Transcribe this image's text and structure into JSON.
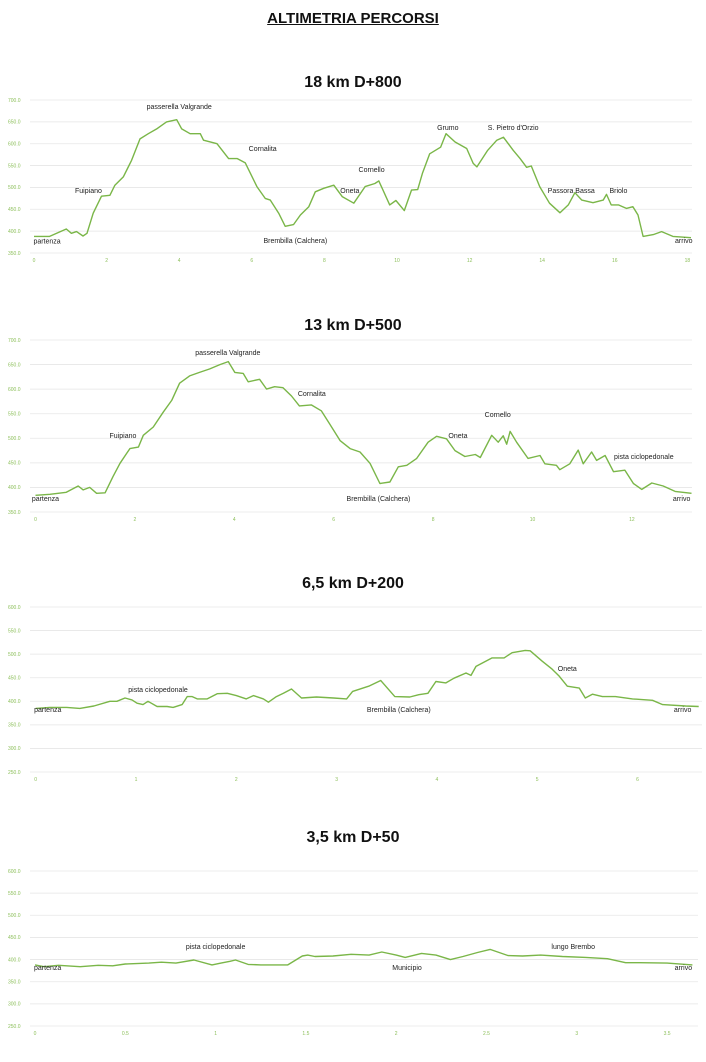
{
  "page_title": "ALTIMETRIA PERCORSI",
  "line_color": "#7ab648",
  "chart_data": [
    {
      "type": "line",
      "title": "18 km D+800",
      "xlim": [
        0,
        18.1
      ],
      "ylim": [
        350,
        700
      ],
      "xticks": [
        0,
        2,
        4,
        6,
        8,
        10,
        12,
        14,
        16,
        18
      ],
      "yticks": [
        "350.0",
        "400.0",
        "450.0",
        "500.0",
        "550.0",
        "600.0",
        "650.0",
        "700.0"
      ],
      "grid": true,
      "x": [
        0,
        0.43,
        0.89,
        1.03,
        1.17,
        1.35,
        1.46,
        1.63,
        1.86,
        2.09,
        2.23,
        2.46,
        2.69,
        2.92,
        3.15,
        3.38,
        3.65,
        3.93,
        4.07,
        4.3,
        4.58,
        4.67,
        5.04,
        5.36,
        5.6,
        5.82,
        6.14,
        6.37,
        6.51,
        6.74,
        6.92,
        7.15,
        7.34,
        7.57,
        7.75,
        7.98,
        8.26,
        8.49,
        8.81,
        9.12,
        9.39,
        9.5,
        9.8,
        9.97,
        10.2,
        10.4,
        10.57,
        10.7,
        10.9,
        11.2,
        11.35,
        11.6,
        11.92,
        12.1,
        12.2,
        12.5,
        12.75,
        12.93,
        13.2,
        13.39,
        13.57,
        13.7,
        13.93,
        14.2,
        14.49,
        14.72,
        14.9,
        15.09,
        15.4,
        15.68,
        15.77,
        15.9,
        16.1,
        16.32,
        16.5,
        16.64,
        16.78,
        17.06,
        17.29,
        17.6,
        18.1
      ],
      "y": [
        388,
        388,
        405,
        395,
        399,
        389,
        395,
        441,
        480,
        482,
        505,
        524,
        562,
        611,
        623,
        634,
        650,
        655,
        634,
        623,
        623,
        608,
        600,
        566,
        566,
        556,
        502,
        475,
        471,
        441,
        411,
        415,
        437,
        456,
        490,
        498,
        505,
        479,
        464,
        502,
        509,
        515,
        460,
        470,
        447,
        494,
        495,
        532,
        577,
        592,
        623,
        604,
        589,
        555,
        547,
        585,
        608,
        615,
        585,
        566,
        546,
        549,
        502,
        464,
        442,
        460,
        488,
        471,
        465,
        471,
        484,
        460,
        460,
        452,
        456,
        437,
        388,
        392,
        399,
        388,
        385
      ],
      "annotations": [
        {
          "text": "partenza",
          "x": 0.36,
          "y": 372
        },
        {
          "text": "Fuipiano",
          "x": 1.5,
          "y": 487
        },
        {
          "text": "passerella Valgrande",
          "x": 4.0,
          "y": 679
        },
        {
          "text": "Cornalita",
          "x": 6.3,
          "y": 583
        },
        {
          "text": "Brembilla (Calchera)",
          "x": 7.2,
          "y": 373
        },
        {
          "text": "Oneta",
          "x": 8.7,
          "y": 487
        },
        {
          "text": "Cornello",
          "x": 9.3,
          "y": 535
        },
        {
          "text": "Grumo",
          "x": 11.4,
          "y": 631
        },
        {
          "text": "S. Pietro d'Orzio",
          "x": 13.2,
          "y": 631
        },
        {
          "text": "Passora Bassa",
          "x": 14.8,
          "y": 487
        },
        {
          "text": "Briolo",
          "x": 16.1,
          "y": 487
        },
        {
          "text": "arrivo",
          "x": 17.9,
          "y": 373
        }
      ]
    },
    {
      "type": "line",
      "title": "13 km D+500",
      "xlim": [
        0,
        13.2
      ],
      "ylim": [
        350,
        700
      ],
      "xticks": [
        0,
        2,
        4,
        6,
        8,
        10,
        12
      ],
      "yticks": [
        "350.0",
        "400.0",
        "450.0",
        "500.0",
        "550.0",
        "600.0",
        "650.0",
        "700.0"
      ],
      "grid": true,
      "x": [
        0,
        0.29,
        0.62,
        0.86,
        0.96,
        1.09,
        1.23,
        1.4,
        1.56,
        1.7,
        1.9,
        2.07,
        2.17,
        2.37,
        2.57,
        2.74,
        2.9,
        3.1,
        3.3,
        3.5,
        3.71,
        3.88,
        4.01,
        4.18,
        4.28,
        4.51,
        4.65,
        4.81,
        4.98,
        5.15,
        5.31,
        5.55,
        5.75,
        5.92,
        6.13,
        6.33,
        6.53,
        6.73,
        6.93,
        7.13,
        7.3,
        7.47,
        7.67,
        7.9,
        8.07,
        8.27,
        8.44,
        8.64,
        8.85,
        8.95,
        9.18,
        9.31,
        9.41,
        9.48,
        9.55,
        9.68,
        9.91,
        10.15,
        10.25,
        10.48,
        10.55,
        10.75,
        10.92,
        11.02,
        11.19,
        11.29,
        11.46,
        11.63,
        11.86,
        12.03,
        12.2,
        12.4,
        12.63,
        12.87,
        13.2
      ],
      "y": [
        384,
        386,
        390,
        403,
        395,
        400,
        388,
        389,
        422,
        449,
        479,
        482,
        506,
        523,
        553,
        577,
        612,
        627,
        634,
        641,
        650,
        656,
        634,
        632,
        615,
        620,
        600,
        605,
        603,
        586,
        566,
        568,
        556,
        529,
        495,
        479,
        472,
        449,
        408,
        411,
        442,
        445,
        459,
        492,
        504,
        499,
        475,
        463,
        467,
        461,
        506,
        492,
        505,
        488,
        514,
        492,
        459,
        465,
        448,
        445,
        436,
        448,
        476,
        448,
        472,
        455,
        465,
        432,
        435,
        408,
        396,
        409,
        403,
        392,
        388
      ],
      "annotations": [
        {
          "text": "partenza",
          "x": 0.2,
          "y": 372
        },
        {
          "text": "Fuipiano",
          "x": 1.76,
          "y": 501
        },
        {
          "text": "passerella Valgrande",
          "x": 3.87,
          "y": 669
        },
        {
          "text": "Cornalita",
          "x": 5.56,
          "y": 586
        },
        {
          "text": "Brembilla (Calchera)",
          "x": 6.9,
          "y": 372
        },
        {
          "text": "Oneta",
          "x": 8.5,
          "y": 501
        },
        {
          "text": "Cornello",
          "x": 9.3,
          "y": 543
        },
        {
          "text": "pista ciclopedonale",
          "x": 12.24,
          "y": 458
        },
        {
          "text": "arrivo",
          "x": 13.0,
          "y": 372
        }
      ]
    },
    {
      "type": "line",
      "title": "6,5 km D+200",
      "xlim": [
        0,
        6.61
      ],
      "ylim": [
        250,
        600
      ],
      "xticks": [
        0,
        1,
        2,
        3,
        4,
        5,
        6
      ],
      "yticks": [
        "250.0",
        "300.0",
        "350.0",
        "400.0",
        "450.0",
        "500.0",
        "550.0",
        "600.0"
      ],
      "grid": true,
      "x": [
        0,
        0.14,
        0.31,
        0.44,
        0.58,
        0.74,
        0.81,
        0.89,
        0.96,
        1.01,
        1.07,
        1.12,
        1.21,
        1.31,
        1.37,
        1.46,
        1.51,
        1.56,
        1.61,
        1.71,
        1.81,
        1.91,
        2.0,
        2.1,
        2.17,
        2.27,
        2.32,
        2.4,
        2.47,
        2.55,
        2.65,
        2.8,
        2.97,
        3.1,
        3.16,
        3.32,
        3.44,
        3.58,
        3.73,
        3.82,
        3.91,
        3.99,
        4.09,
        4.17,
        4.29,
        4.34,
        4.39,
        4.55,
        4.67,
        4.75,
        4.88,
        4.93,
        5.05,
        5.15,
        5.22,
        5.3,
        5.42,
        5.48,
        5.55,
        5.65,
        5.78,
        5.95,
        6.15,
        6.25,
        6.48,
        6.61
      ],
      "y": [
        385,
        387,
        387,
        385,
        390,
        400,
        400,
        407,
        403,
        396,
        393,
        400,
        389,
        389,
        387,
        393,
        410,
        410,
        405,
        405,
        416,
        417,
        412,
        405,
        412,
        405,
        398,
        410,
        417,
        426,
        407,
        409,
        407,
        405,
        421,
        432,
        444,
        410,
        409,
        414,
        417,
        442,
        439,
        449,
        460,
        455,
        474,
        492,
        492,
        503,
        508,
        507,
        485,
        468,
        453,
        432,
        428,
        407,
        415,
        410,
        410,
        405,
        402,
        393,
        390,
        389
      ],
      "annotations": [
        {
          "text": "partenza",
          "x": 0.12,
          "y": 377
        },
        {
          "text": "pista ciclopedonale",
          "x": 1.22,
          "y": 420
        },
        {
          "text": "Brembilla (Calchera)",
          "x": 3.62,
          "y": 377
        },
        {
          "text": "Oneta",
          "x": 5.3,
          "y": 464
        },
        {
          "text": "arrivo",
          "x": 6.45,
          "y": 377
        }
      ]
    },
    {
      "type": "line",
      "title": "3,5 km D+50",
      "xlim": [
        0,
        3.64
      ],
      "ylim": [
        250,
        600
      ],
      "xticks": [
        "0",
        "0.5",
        "1",
        "1.5",
        "2",
        "2.5",
        "3",
        "3.5"
      ],
      "yticks": [
        "250.0",
        "300.0",
        "350.0",
        "400.0",
        "450.0",
        "500.0",
        "550.0",
        "600.0"
      ],
      "grid": true,
      "x": [
        0,
        0.05,
        0.13,
        0.25,
        0.35,
        0.43,
        0.5,
        0.63,
        0.7,
        0.78,
        0.88,
        0.98,
        1.03,
        1.08,
        1.11,
        1.18,
        1.25,
        1.33,
        1.4,
        1.48,
        1.51,
        1.55,
        1.65,
        1.75,
        1.85,
        1.92,
        2.0,
        2.05,
        2.14,
        2.22,
        2.3,
        2.37,
        2.45,
        2.52,
        2.62,
        2.7,
        2.8,
        2.92,
        3.05,
        3.17,
        3.27,
        3.35,
        3.5,
        3.64
      ],
      "y": [
        388,
        384,
        387,
        384,
        387,
        386,
        390,
        392,
        394,
        392,
        399,
        388,
        392,
        396,
        399,
        389,
        388,
        388,
        388,
        408,
        410,
        407,
        408,
        412,
        410,
        417,
        410,
        405,
        414,
        410,
        400,
        407,
        416,
        423,
        409,
        408,
        410,
        407,
        405,
        402,
        393,
        393,
        392,
        388
      ],
      "annotations": [
        {
          "text": "partenza",
          "x": 0.07,
          "y": 376
        },
        {
          "text": "pista ciclopedonale",
          "x": 1.0,
          "y": 424
        },
        {
          "text": "Municipio",
          "x": 2.06,
          "y": 376
        },
        {
          "text": "lungo Brembo",
          "x": 2.98,
          "y": 424
        },
        {
          "text": "arrivo",
          "x": 3.59,
          "y": 376
        }
      ]
    }
  ]
}
